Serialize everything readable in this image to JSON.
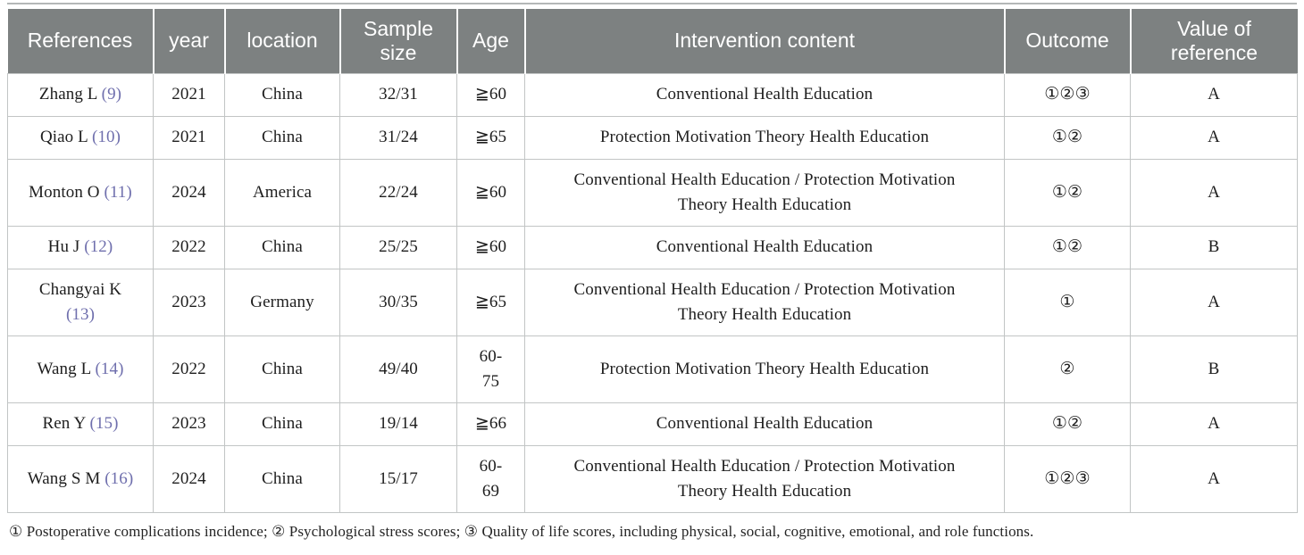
{
  "table": {
    "headers": [
      "References",
      "year",
      "location",
      "Sample size",
      "Age",
      "Intervention content",
      "Outcome",
      "Value of reference"
    ],
    "rows": [
      {
        "reference_name": "Zhang L",
        "reference_citation": "(9)",
        "citation_on_new_line": false,
        "year": "2021",
        "location": "China",
        "sample_size": "32/31",
        "age": "≧60",
        "intervention": "Conventional Health Education",
        "outcome": "①②③",
        "value": "A"
      },
      {
        "reference_name": "Qiao L",
        "reference_citation": "(10)",
        "citation_on_new_line": false,
        "year": "2021",
        "location": "China",
        "sample_size": "31/24",
        "age": "≧65",
        "intervention": "Protection Motivation Theory Health Education",
        "outcome": "①②",
        "value": "A"
      },
      {
        "reference_name": "Monton O",
        "reference_citation": "(11)",
        "citation_on_new_line": false,
        "year": "2024",
        "location": "America",
        "sample_size": "22/24",
        "age": "≧60",
        "intervention": "Conventional Health Education / Protection Motivation Theory Health Education",
        "outcome": "①②",
        "value": "A"
      },
      {
        "reference_name": "Hu J",
        "reference_citation": "(12)",
        "citation_on_new_line": false,
        "year": "2022",
        "location": "China",
        "sample_size": "25/25",
        "age": "≧60",
        "intervention": "Conventional Health Education",
        "outcome": "①②",
        "value": "B"
      },
      {
        "reference_name": "Changyai K",
        "reference_citation": "(13)",
        "citation_on_new_line": true,
        "year": "2023",
        "location": "Germany",
        "sample_size": "30/35",
        "age": "≧65",
        "intervention": "Conventional Health Education / Protection Motivation Theory Health Education",
        "outcome": "①",
        "value": "A"
      },
      {
        "reference_name": "Wang L",
        "reference_citation": "(14)",
        "citation_on_new_line": false,
        "year": "2022",
        "location": "China",
        "sample_size": "49/40",
        "age": "60-\n75",
        "intervention": "Protection Motivation Theory Health Education",
        "outcome": "②",
        "value": "B"
      },
      {
        "reference_name": "Ren Y",
        "reference_citation": "(15)",
        "citation_on_new_line": false,
        "year": "2023",
        "location": "China",
        "sample_size": "19/14",
        "age": "≧66",
        "intervention": "Conventional Health Education",
        "outcome": "①②",
        "value": "A"
      },
      {
        "reference_name": "Wang S M",
        "reference_citation": "(16)",
        "citation_on_new_line": false,
        "year": "2024",
        "location": "China",
        "sample_size": "15/17",
        "age": "60-\n69",
        "intervention": "Conventional Health Education / Protection Motivation Theory Health Education",
        "outcome": "①②③",
        "value": "A"
      }
    ],
    "footnote": "① Postoperative complications incidence; ② Psychological stress scores; ③ Quality of life scores, including physical, social, cognitive, emotional, and role functions."
  },
  "colors": {
    "header_bg": "#7d8181",
    "header_text": "#ffffff",
    "citation_link": "#6f6fad",
    "body_text": "#1e1e1e",
    "border": "#c2c5c5"
  }
}
